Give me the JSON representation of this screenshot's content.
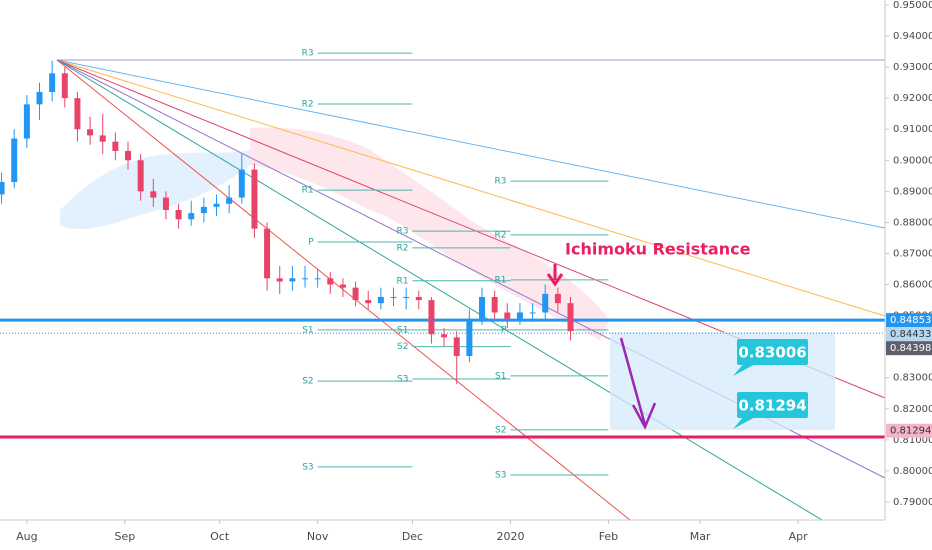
{
  "chart_data": {
    "type": "candlestick",
    "annotation": "Ichimoku Resistance",
    "up_color": "#2196f3",
    "down_color": "#e8446a",
    "xlim": [
      -8.5,
      271.5
    ],
    "xticks": [
      {
        "value": 0,
        "label": "Aug"
      },
      {
        "value": 31,
        "label": "Sep"
      },
      {
        "value": 61,
        "label": "Oct"
      },
      {
        "value": 92,
        "label": "Nov"
      },
      {
        "value": 122,
        "label": "Dec"
      },
      {
        "value": 153,
        "label": "2020"
      },
      {
        "value": 184,
        "label": "Feb"
      },
      {
        "value": 213,
        "label": "Mar"
      },
      {
        "value": 244,
        "label": "Apr"
      }
    ],
    "ylim": [
      0.7842,
      0.9516
    ],
    "yticks": [
      {
        "value": 0.95,
        "label": "0.95000"
      },
      {
        "value": 0.94,
        "label": "0.94000"
      },
      {
        "value": 0.93,
        "label": "0.93000"
      },
      {
        "value": 0.92,
        "label": "0.92000"
      },
      {
        "value": 0.91,
        "label": "0.91000"
      },
      {
        "value": 0.9,
        "label": "0.90000"
      },
      {
        "value": 0.89,
        "label": "0.89000"
      },
      {
        "value": 0.88,
        "label": "0.88000"
      },
      {
        "value": 0.87,
        "label": "0.87000"
      },
      {
        "value": 0.86,
        "label": "0.86000"
      },
      {
        "value": 0.85,
        "label": "0.85000"
      },
      {
        "value": 0.84,
        "label": "0.84000"
      },
      {
        "value": 0.83,
        "label": "0.83000"
      },
      {
        "value": 0.82,
        "label": "0.82000"
      },
      {
        "value": 0.81,
        "label": "0.81000"
      },
      {
        "value": 0.8,
        "label": "0.80000"
      },
      {
        "value": 0.79,
        "label": "0.79000"
      }
    ],
    "candles": [
      [
        -8,
        0.889,
        0.896,
        0.886,
        0.893
      ],
      [
        -4,
        0.893,
        0.91,
        0.891,
        0.907
      ],
      [
        0,
        0.907,
        0.921,
        0.904,
        0.918
      ],
      [
        4,
        0.918,
        0.925,
        0.913,
        0.922
      ],
      [
        8,
        0.922,
        0.932,
        0.919,
        0.928
      ],
      [
        12,
        0.928,
        0.93,
        0.917,
        0.92
      ],
      [
        16,
        0.92,
        0.922,
        0.906,
        0.91
      ],
      [
        20,
        0.91,
        0.914,
        0.905,
        0.908
      ],
      [
        24,
        0.908,
        0.915,
        0.902,
        0.906
      ],
      [
        28,
        0.906,
        0.909,
        0.9,
        0.903
      ],
      [
        32,
        0.903,
        0.906,
        0.897,
        0.9
      ],
      [
        36,
        0.9,
        0.902,
        0.887,
        0.89
      ],
      [
        40,
        0.89,
        0.894,
        0.885,
        0.888
      ],
      [
        44,
        0.888,
        0.89,
        0.881,
        0.884
      ],
      [
        48,
        0.884,
        0.886,
        0.878,
        0.881
      ],
      [
        52,
        0.881,
        0.887,
        0.879,
        0.883
      ],
      [
        56,
        0.883,
        0.888,
        0.88,
        0.885
      ],
      [
        60,
        0.885,
        0.889,
        0.882,
        0.886
      ],
      [
        64,
        0.886,
        0.892,
        0.883,
        0.888
      ],
      [
        68,
        0.888,
        0.902,
        0.886,
        0.897
      ],
      [
        72,
        0.897,
        0.899,
        0.875,
        0.878
      ],
      [
        76,
        0.878,
        0.88,
        0.858,
        0.862
      ],
      [
        80,
        0.862,
        0.866,
        0.857,
        0.861
      ],
      [
        84,
        0.861,
        0.866,
        0.858,
        0.862
      ],
      [
        88,
        0.862,
        0.866,
        0.859,
        0.862
      ],
      [
        92,
        0.862,
        0.865,
        0.859,
        0.862
      ],
      [
        96,
        0.862,
        0.864,
        0.857,
        0.86
      ],
      [
        100,
        0.86,
        0.862,
        0.856,
        0.859
      ],
      [
        104,
        0.859,
        0.861,
        0.853,
        0.855
      ],
      [
        108,
        0.855,
        0.858,
        0.852,
        0.854
      ],
      [
        112,
        0.854,
        0.859,
        0.852,
        0.856
      ],
      [
        116,
        0.856,
        0.859,
        0.853,
        0.856
      ],
      [
        120,
        0.856,
        0.859,
        0.852,
        0.856
      ],
      [
        124,
        0.856,
        0.858,
        0.852,
        0.855
      ],
      [
        128,
        0.855,
        0.856,
        0.841,
        0.844
      ],
      [
        132,
        0.844,
        0.846,
        0.84,
        0.843
      ],
      [
        136,
        0.843,
        0.845,
        0.828,
        0.837
      ],
      [
        140,
        0.837,
        0.852,
        0.835,
        0.849
      ],
      [
        144,
        0.849,
        0.859,
        0.847,
        0.856
      ],
      [
        148,
        0.856,
        0.858,
        0.849,
        0.851
      ],
      [
        152,
        0.851,
        0.854,
        0.846,
        0.849
      ],
      [
        156,
        0.849,
        0.854,
        0.847,
        0.851
      ],
      [
        160,
        0.851,
        0.854,
        0.848,
        0.851
      ],
      [
        164,
        0.851,
        0.86,
        0.849,
        0.857
      ],
      [
        168,
        0.857,
        0.859,
        0.851,
        0.854
      ],
      [
        172,
        0.854,
        0.856,
        0.842,
        0.845
      ]
    ],
    "pivots": [
      {
        "start": 92,
        "end": 122,
        "levels": [
          {
            "label": "R3",
            "value": 0.9345
          },
          {
            "label": "R2",
            "value": 0.9181
          },
          {
            "label": "R1",
            "value": 0.8904
          },
          {
            "label": "P",
            "value": 0.8737
          },
          {
            "label": "S1",
            "value": 0.8454
          },
          {
            "label": "S2",
            "value": 0.8289
          },
          {
            "label": "S3",
            "value": 0.8013
          }
        ]
      },
      {
        "start": 122,
        "end": 153,
        "levels": [
          {
            "label": "R3",
            "value": 0.8772
          },
          {
            "label": "R2",
            "value": 0.8718
          },
          {
            "label": "R1",
            "value": 0.8612
          },
          {
            "label": "S1",
            "value": 0.8454
          },
          {
            "label": "S2",
            "value": 0.84
          },
          {
            "label": "S3",
            "value": 0.8296
          }
        ]
      },
      {
        "start": 153,
        "end": 184,
        "levels": [
          {
            "label": "R3",
            "value": 0.8933
          },
          {
            "label": "R2",
            "value": 0.876
          },
          {
            "label": "R1",
            "value": 0.8615
          },
          {
            "label": "P",
            "value": 0.8454
          },
          {
            "label": "S1",
            "value": 0.8306
          },
          {
            "label": "S2",
            "value": 0.8132
          },
          {
            "label": "S3",
            "value": 0.7987
          }
        ]
      }
    ],
    "hlines": [
      {
        "value": 0.84853,
        "color": "#2196f3"
      },
      {
        "value": 0.8109,
        "color": "#e91e63"
      }
    ],
    "last_price_line": 0.84433,
    "price_tags": [
      {
        "value": 0.84853,
        "color": "#2196f3"
      },
      {
        "value": 0.84433,
        "color": "#b5d7f0"
      },
      {
        "value": 0.84398,
        "color": "#5d606b"
      },
      {
        "value": 0.81294,
        "color": "#f4b6c6"
      }
    ],
    "targets": [
      0.83006,
      0.81294
    ]
  }
}
